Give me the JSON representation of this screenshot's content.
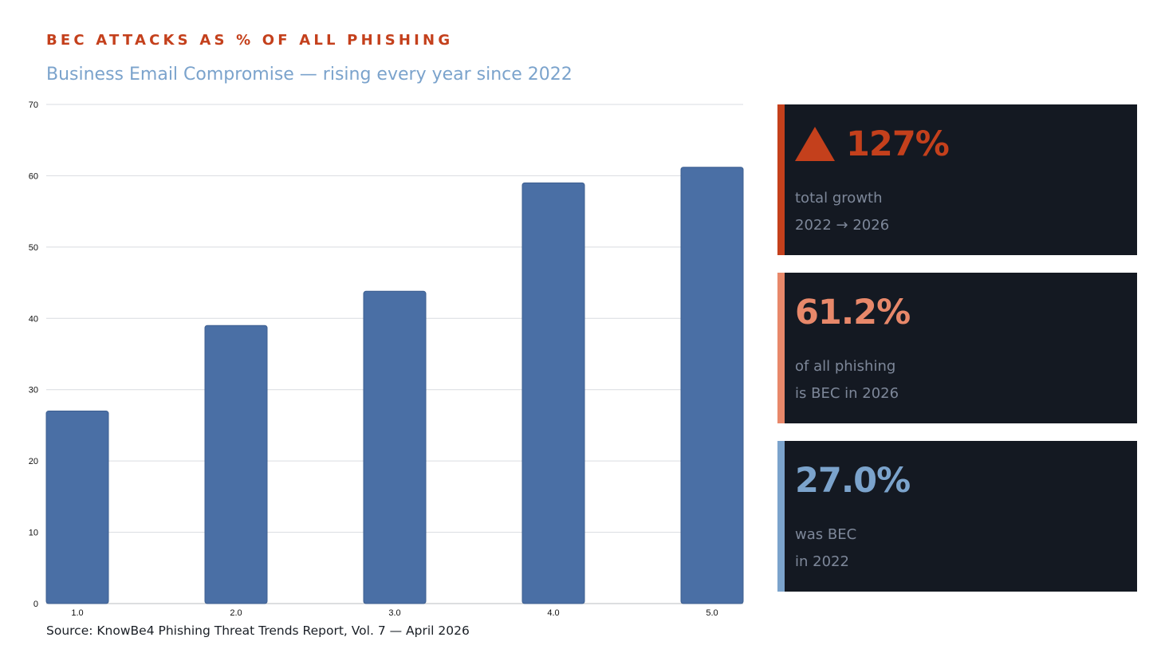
{
  "header": {
    "eyebrow": "BEC ATTACKS AS % OF ALL PHISHING",
    "subtitle": "Business Email Compromise — rising every year since 2022"
  },
  "footer": {
    "source": "Source: KnowBe4 Phishing Threat Trends Report, Vol. 7 — April 2026"
  },
  "colors": {
    "accent_red": "#c4401c",
    "accent_salmon": "#e8886a",
    "accent_blue": "#7ba3cc",
    "bar": "#4a6fa5",
    "card_bg": "#141922"
  },
  "chart_data": {
    "type": "bar",
    "categories": [
      "1.0",
      "2.0",
      "3.0",
      "4.0",
      "5.0"
    ],
    "values": [
      27.0,
      39.0,
      43.8,
      59.0,
      61.2
    ],
    "yticks": [
      0,
      10,
      20,
      30,
      40,
      50,
      60,
      70
    ],
    "ylim": [
      0,
      70
    ],
    "grid": true,
    "title": "",
    "xlabel": "",
    "ylabel": ""
  },
  "stats": [
    {
      "icon": "triangle-up-icon",
      "value": "127%",
      "line1": "total growth",
      "line2": "2022 → 2026",
      "color": "#c4401c"
    },
    {
      "value": "61.2%",
      "line1": "of all phishing",
      "line2": "is BEC in 2026",
      "color": "#e8886a"
    },
    {
      "value": "27.0%",
      "line1": "was BEC",
      "line2": "in 2022",
      "color": "#7ba3cc"
    }
  ]
}
